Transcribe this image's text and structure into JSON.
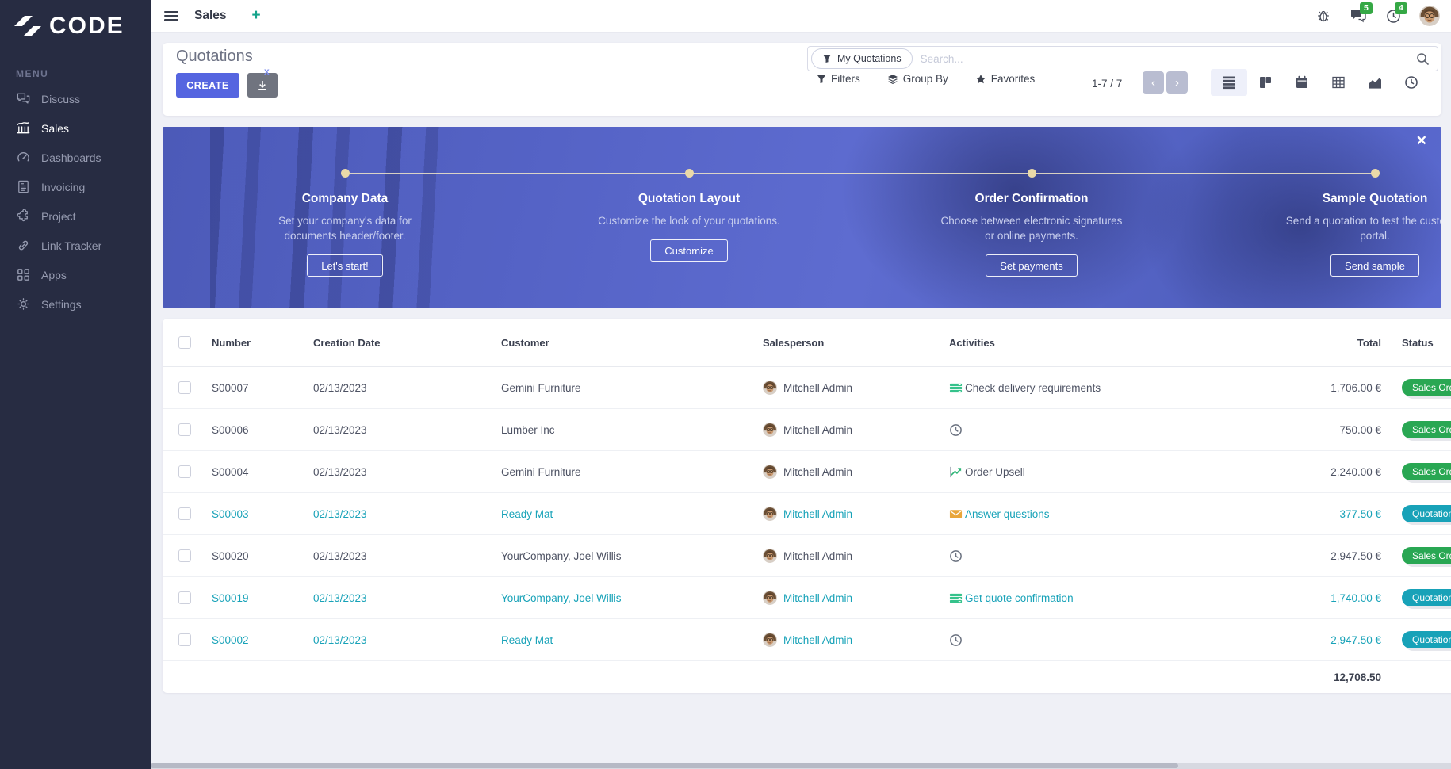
{
  "colors": {
    "primary": "#5565e0",
    "teal_accent": "#14a38b",
    "link_info": "#17a2b8",
    "badge_success": "#29a753",
    "badge_info": "#18a2b8",
    "notification": "#35a845",
    "sidebar_bg": "#272c42",
    "timeline": "#ead9a8"
  },
  "sidebar": {
    "logo_text": "CODE",
    "menu_label": "MENU",
    "items": [
      {
        "label": "Discuss",
        "icon": "comments",
        "active": false
      },
      {
        "label": "Sales",
        "icon": "sales",
        "active": true
      },
      {
        "label": "Dashboards",
        "icon": "gauge",
        "active": false
      },
      {
        "label": "Invoicing",
        "icon": "invoice",
        "active": false
      },
      {
        "label": "Project",
        "icon": "puzzle",
        "active": false
      },
      {
        "label": "Link Tracker",
        "icon": "link",
        "active": false
      },
      {
        "label": "Apps",
        "icon": "grid",
        "active": false
      },
      {
        "label": "Settings",
        "icon": "gear",
        "active": false
      }
    ]
  },
  "topbar": {
    "app_title": "Sales",
    "add_tab_label": "+",
    "messages_count": "5",
    "activities_count": "4"
  },
  "control_panel": {
    "title": "Quotations",
    "create_label": "CREATE",
    "search_facet": "My Quotations",
    "facet_remove": "x",
    "search_placeholder": "Search...",
    "filters_label": "Filters",
    "group_by_label": "Group By",
    "favorites_label": "Favorites",
    "pager_text": "1-7 / 7",
    "prev_label": "‹",
    "next_label": "›"
  },
  "onboarding": {
    "close_label": "✕",
    "steps": [
      {
        "title": "Company Data",
        "description": "Set your company's data for documents header/footer.",
        "button": "Let's start!"
      },
      {
        "title": "Quotation Layout",
        "description": "Customize the look of your quotations.",
        "button": "Customize"
      },
      {
        "title": "Order Confirmation",
        "description": "Choose between electronic signatures or online payments.",
        "button": "Set payments"
      },
      {
        "title": "Sample Quotation",
        "description": "Send a quotation to test the customer portal.",
        "button": "Send sample"
      }
    ]
  },
  "table": {
    "headers": {
      "number": "Number",
      "creation_date": "Creation Date",
      "customer": "Customer",
      "salesperson": "Salesperson",
      "activities": "Activities",
      "total": "Total",
      "status": "Status"
    },
    "rows": [
      {
        "number": "S00007",
        "creation_date": "02/13/2023",
        "customer": "Gemini Furniture",
        "salesperson": "Mitchell Admin",
        "activity_icon": "tasks",
        "activity": "Check delivery requirements",
        "total": "1,706.00 €",
        "status": "Sales Order",
        "variant": "success",
        "muted": false
      },
      {
        "number": "S00006",
        "creation_date": "02/13/2023",
        "customer": "Lumber Inc",
        "salesperson": "Mitchell Admin",
        "activity_icon": "clock",
        "activity": "",
        "total": "750.00 €",
        "status": "Sales Order",
        "variant": "success",
        "muted": false
      },
      {
        "number": "S00004",
        "creation_date": "02/13/2023",
        "customer": "Gemini Furniture",
        "salesperson": "Mitchell Admin",
        "activity_icon": "upsell",
        "activity": "Order Upsell",
        "total": "2,240.00 €",
        "status": "Sales Order",
        "variant": "success",
        "muted": false
      },
      {
        "number": "S00003",
        "creation_date": "02/13/2023",
        "customer": "Ready Mat",
        "salesperson": "Mitchell Admin",
        "activity_icon": "email",
        "activity": "Answer questions",
        "total": "377.50 €",
        "status": "Quotation Sent",
        "variant": "info",
        "muted": true
      },
      {
        "number": "S00020",
        "creation_date": "02/13/2023",
        "customer": "YourCompany, Joel Willis",
        "salesperson": "Mitchell Admin",
        "activity_icon": "clock",
        "activity": "",
        "total": "2,947.50 €",
        "status": "Sales Order",
        "variant": "success",
        "muted": false
      },
      {
        "number": "S00019",
        "creation_date": "02/13/2023",
        "customer": "YourCompany, Joel Willis",
        "salesperson": "Mitchell Admin",
        "activity_icon": "tasks",
        "activity": "Get quote confirmation",
        "total": "1,740.00 €",
        "status": "Quotation Sent",
        "variant": "info",
        "muted": true
      },
      {
        "number": "S00002",
        "creation_date": "02/13/2023",
        "customer": "Ready Mat",
        "salesperson": "Mitchell Admin",
        "activity_icon": "clock",
        "activity": "",
        "total": "2,947.50 €",
        "status": "Quotation Sent",
        "variant": "info",
        "muted": true
      }
    ],
    "footer_total": "12,708.50"
  }
}
